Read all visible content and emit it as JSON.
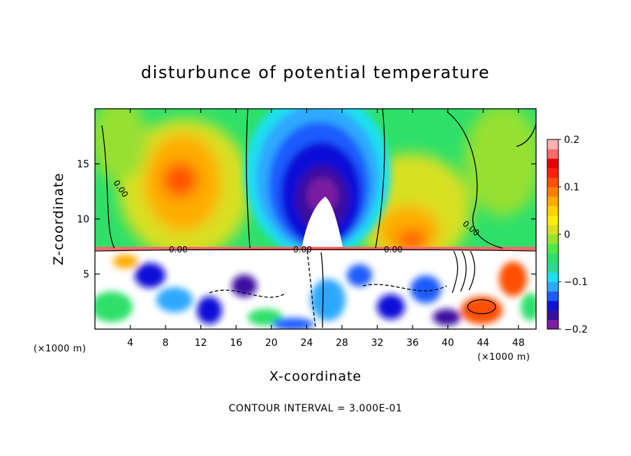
{
  "chart_data": {
    "type": "heatmap",
    "title": "disturbunce of potential temperature",
    "xlabel": "X-coordinate",
    "ylabel": "Z-coordinate",
    "x_unit": "(×1000 m)",
    "x_unit_right": "(×1000 m)",
    "footnote": "CONTOUR INTERVAL = 3.000E-01",
    "xlim": [
      0,
      50
    ],
    "ylim": [
      0,
      20
    ],
    "x_ticks": [
      4,
      8,
      12,
      16,
      20,
      24,
      28,
      32,
      36,
      40,
      44,
      48
    ],
    "x_tick_labels": [
      "4",
      "8",
      "12",
      "16",
      "20",
      "24",
      "28",
      "32",
      "36",
      "40",
      "44",
      "48"
    ],
    "y_ticks": [
      5,
      10,
      15
    ],
    "y_tick_labels": [
      "5",
      "10",
      "15"
    ],
    "colorbar": {
      "range": [
        -0.2,
        0.2
      ],
      "tick_values": [
        0.2,
        0.1,
        0,
        -0.1,
        -0.2
      ],
      "tick_labels": [
        "0.2",
        "0.1",
        "0",
        "−0.1",
        "−0.2"
      ],
      "colors": [
        "#7a1fa2",
        "#3a0fa0",
        "#1010d8",
        "#1e5cff",
        "#2ea8ff",
        "#1ee0ee",
        "#2fd890",
        "#2ee06a",
        "#4ee84a",
        "#96e030",
        "#d8e020",
        "#fff000",
        "#ffd200",
        "#ffac00",
        "#ff8000",
        "#ff5000",
        "#ff2010",
        "#e80000",
        "#ff6a6a",
        "#ffb0b0"
      ]
    },
    "contour_labels": [
      {
        "text": "0.00",
        "x": 17.8,
        "y": 7.2
      },
      {
        "text": "0.00",
        "x": 46.4,
        "y": 7.2
      },
      {
        "text": "0.00",
        "x": 58.2,
        "y": 7.2
      },
      {
        "text": "0.00",
        "x": 3.5,
        "y": 12.5
      },
      {
        "text": "0.00",
        "x": 43.5,
        "y": 9.3
      }
    ],
    "field_features": [
      {
        "kind": "warm",
        "x": 10,
        "z": 14,
        "amp": 0.17
      },
      {
        "kind": "warm",
        "x": 35,
        "z": 9,
        "amp": 0.13
      },
      {
        "kind": "cold",
        "x": 25.5,
        "z": 12,
        "amp": -0.2
      },
      {
        "kind": "turbulent_layer",
        "z_top": 7.2
      }
    ]
  }
}
